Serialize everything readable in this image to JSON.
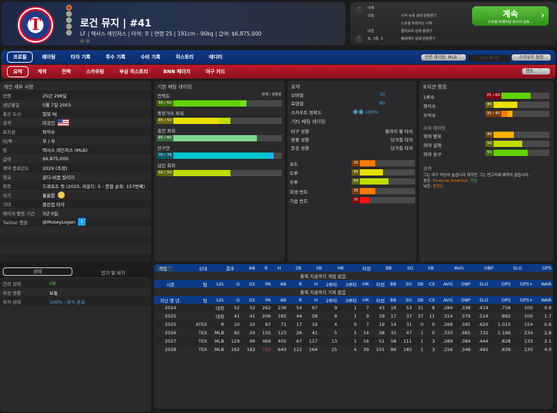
{
  "header": {
    "name": "로건 뮤지  |  #41",
    "subtitle": "LF | 텍사스 레인저스  |  타석: 우  |  연령 25  |  191cm - 90kg  |  급여: $6,875,000",
    "logo_text": "T"
  },
  "schedule": {
    "rows": [
      {
        "day": "어제",
        "event": ""
      },
      {
        "day": "오늘",
        "event": "시작 뉴욕 상대 원정경기"
      },
      {
        "day": "",
        "event": "스프링 트레이닝 시작"
      },
      {
        "day": "내일",
        "event": "클리오미 상대 홈경기"
      },
      {
        "day": "토, 3월, 3",
        "event": "탬파베이 상대 원정경기"
      }
    ],
    "continue_label": "계속",
    "continue_sub": "스프링 트레이닝 로스터 검토..."
  },
  "nav": {
    "main_tabs": [
      "프로필",
      "레이팅",
      "타자 기록",
      "투수 기록",
      "수비 기록",
      "히스토리",
      "에디터"
    ],
    "sub_tabs": [
      "요약",
      "계약",
      "전략",
      "스카우팅",
      "부상 히스토리",
      "BNN 페이지",
      "야구 카드"
    ],
    "rating_select": "관련 레이팅: MLB",
    "osa_label": "OSA 레이팅",
    "scout_label": "스카우트 팀장",
    "action_select": "행동..."
  },
  "personal": {
    "title": "개인 세부 사항",
    "rows": [
      {
        "k": "연령",
        "v": "25년 298일"
      },
      {
        "k": "생년월일",
        "v": "5월 7일 2003"
      },
      {
        "k": "출신 도시",
        "v": "밀빌 NJ"
      },
      {
        "k": "국적",
        "v": "미국인"
      },
      {
        "k": "포지션",
        "v": "좌익수"
      },
      {
        "k": "타/투",
        "v": "우 / 우"
      },
      {
        "k": "팀",
        "v": "텍사스 레인저스 (MLB)"
      },
      {
        "k": "급여",
        "v": "$6,875,000"
      },
      {
        "k": "계약 종료년도",
        "v": "2029 (조정)"
      },
      {
        "k": "학교",
        "v": "골디-비콤 칼리지"
      },
      {
        "k": "획득",
        "v": "드래프트 픽 (2025, 라운드: 5 - 종합 순위: 157번째)"
      },
      {
        "k": "사기",
        "v": "훌륭함"
      },
      {
        "k": "기대",
        "v": "클린업 타자"
      },
      {
        "k": "메이저 활동 기간",
        "v": "3년 0일"
      },
      {
        "k": "Twitter 핸들",
        "v": "@MuseyLogan"
      }
    ]
  },
  "batting": {
    "title": "기본 배팅 레이팅",
    "legend": "현재 / 포텐셜",
    "ratings": [
      {
        "name": "컨택트",
        "cur": 55,
        "pot": 60,
        "label": "55 / 60",
        "color": "#5fd400",
        "lblbg": "#3a6a00"
      },
      {
        "name": "중장거리 파워",
        "cur": 45,
        "pot": 50,
        "label": "45 / 50",
        "color": "#e8e000",
        "lblbg": "#6a6400"
      },
      {
        "name": "홈런 파워",
        "cur": 65,
        "pot": 65,
        "label": "65 / 65",
        "color": "#7ed890",
        "lblbg": "#3a6a44"
      },
      {
        "name": "선구안",
        "cur": 70,
        "pot": 75,
        "label": "70 / 75",
        "color": "#00c8d0",
        "lblbg": "#005a66"
      },
      {
        "name": "삼진 회피",
        "cur": 50,
        "pot": 50,
        "label": "50 / 50",
        "color": "#c0dc00",
        "lblbg": "#5a6600"
      }
    ]
  },
  "summary": {
    "title": "요약",
    "overall_label": "오버럴",
    "overall": "70",
    "potential_label": "포텐셜",
    "potential": "80",
    "scout_label": "스카우트 정확도",
    "scout": "100%",
    "other_title": "기타 배팅 레이팅",
    "tendencies": [
      {
        "k": "타구 성향",
        "v": "플라이 볼 타자"
      },
      {
        "k": "땅볼 성향",
        "v": "당겨칠 타자"
      },
      {
        "k": "뜬공 성향",
        "v": "당겨칠 타자"
      }
    ],
    "running": [
      {
        "k": "속도",
        "v": 35,
        "color": "#ff7a00",
        "lblbg": "#7a3a00"
      },
      {
        "k": "도루",
        "v": 45,
        "color": "#e8e000",
        "lblbg": "#6a6400"
      },
      {
        "k": "주루",
        "v": 50,
        "color": "#c0dc00",
        "lblbg": "#5a6600"
      },
      {
        "k": "희생 번트",
        "v": 35,
        "color": "#ff7a00",
        "lblbg": "#7a3a00"
      },
      {
        "k": "기습 번트",
        "v": 30,
        "color": "#ff1010",
        "lblbg": "#7a0000"
      }
    ]
  },
  "position": {
    "title": "포지션 평점",
    "rows": [
      {
        "k": "1루수",
        "label": "25 / 60",
        "cur": 25,
        "pot": 60,
        "color": "#5fd400",
        "curcolor": "#5fd400",
        "lblbg": "#7a0000"
      },
      {
        "k": "좌익수",
        "label": "45",
        "cur": 45,
        "pot": 45,
        "color": "#e8e000",
        "lblbg": "#6a6400"
      },
      {
        "k": "우익수",
        "label": "35 / 40",
        "cur": 35,
        "pot": 40,
        "color": "#ffb000",
        "curcolor": "#ff7a00",
        "lblbg": "#7a3a00"
      }
    ],
    "def_title": "수비 레이팅",
    "def": [
      {
        "k": "외야 범위",
        "v": 40,
        "color": "#ffb000",
        "lblbg": "#6a4a00"
      },
      {
        "k": "외야 실책",
        "v": 50,
        "color": "#c0dc00",
        "lblbg": "#5a6600"
      },
      {
        "k": "외야 송구",
        "v": 55,
        "color": "#5fd400",
        "lblbg": "#3a6a00"
      }
    ],
    "personality_title": "성격",
    "personality": "그는 야구 지능이 높습니다 하지만 그는 연고지에 애착이 없습니다..",
    "high_label": "높은:",
    "high_vals": "Financial Ambition,",
    "high_val2": "지능",
    "low_label": "낮은:",
    "low_val": "충성도"
  },
  "status": {
    "tab_active": "상태",
    "tab_other": "인기 및 사기",
    "rows": [
      {
        "k": "건강 상태",
        "v": "OK",
        "color": "#4cd04c"
      },
      {
        "k": "부상 경향",
        "v": "보통",
        "color": "#eee"
      },
      {
        "k": "휴식 상태",
        "v": "100% - 휴식 완료",
        "color": "#4ab0e8"
      }
    ]
  },
  "stats": {
    "game_select": "게임",
    "game_headers": [
      "상대",
      "결과",
      "AB",
      "R",
      "H",
      "2B",
      "3B",
      "HR",
      "타점",
      "BB",
      "SO",
      "SB",
      "AVG",
      "OBP",
      "SLG",
      "OPS"
    ],
    "season_msg": "올해 지금까지 게임 없음.",
    "season_headers": [
      "시즌",
      "팀",
      "LVL",
      "G",
      "GS",
      "PA",
      "AB",
      "R",
      "H",
      "2루타",
      "3루타",
      "HR",
      "타점",
      "BB",
      "SO",
      "SB",
      "CS",
      "AVG",
      "OBP",
      "SLG",
      "OPS",
      "OPS+",
      "WAR"
    ],
    "season_msg2": "올해 지금까지 기록 없음",
    "career_headers": [
      "지난 몇 년.",
      "팀",
      "LVL",
      "G",
      "GS",
      "PA",
      "AB",
      "R",
      "H",
      "2루타",
      "3루타",
      "HR",
      "타점",
      "BB",
      "SO",
      "SB",
      "CS",
      "AVG",
      "OBP",
      "SLG",
      "OPS",
      "OPS+",
      "WAR"
    ],
    "rows": [
      [
        "2024",
        "",
        "대학",
        "52",
        "52",
        "262",
        "236",
        "54",
        "67",
        "9",
        "1",
        "7",
        "43",
        "18",
        "53",
        "31",
        "8",
        ".284",
        ".338",
        ".419",
        ".758",
        "100",
        "0.9"
      ],
      [
        "2025",
        "",
        "대학",
        "41",
        "41",
        "206",
        "185",
        "44",
        "58",
        "8",
        "1",
        "9",
        "39",
        "17",
        "37",
        "37",
        "11",
        ".314",
        ".379",
        ".514",
        ".892",
        "100",
        "1.7"
      ],
      [
        "2025",
        "ATEX",
        "R",
        "20",
        "20",
        "87",
        "71",
        "17",
        "19",
        "4",
        "0",
        "7",
        "19",
        "14",
        "31",
        "0",
        "0",
        ".268",
        ".395",
        ".620",
        "1.015",
        "154",
        "0.8"
      ],
      [
        "2026",
        "TEX",
        "MLB",
        "92",
        "20",
        "155",
        "123",
        "26",
        "41",
        "5",
        "1",
        "14",
        "38",
        "31",
        "47",
        "1",
        "0",
        ".333",
        ".465",
        ".732",
        "1.196",
        "234",
        "2.8"
      ],
      [
        "2027",
        "TEX",
        "MLB",
        "129",
        "99",
        "469",
        "405",
        "67",
        "117",
        "13",
        "1",
        "16",
        "51",
        "58",
        "111",
        "1",
        "3",
        ".289",
        ".384",
        ".444",
        ".828",
        "133",
        "2.1"
      ],
      [
        "2028",
        "TEX",
        "MLB",
        "162",
        "162",
        "733",
        "640",
        "122",
        "164",
        "25",
        "4",
        "39",
        "101",
        "86",
        "185",
        "1",
        "3",
        ".256",
        ".348",
        ".491",
        ".839",
        "135",
        "4.0"
      ]
    ]
  }
}
